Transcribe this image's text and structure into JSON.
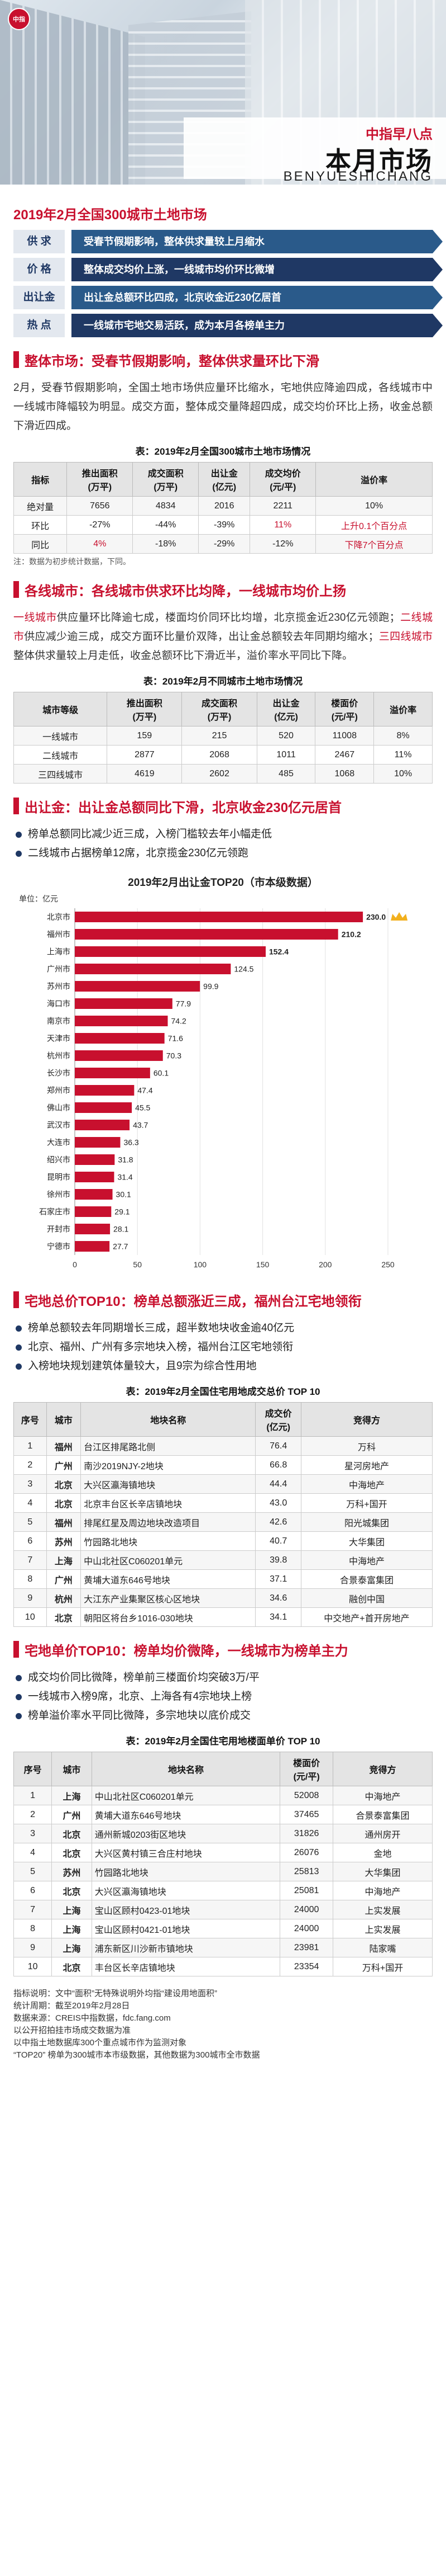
{
  "hero": {
    "logo_text": "中指",
    "subtitle": "中指早八点",
    "title": "本月市场",
    "pinyin": "BENYUESHICHANG"
  },
  "summary": {
    "title": "2019年2月全国300城市土地市场",
    "rows": [
      {
        "label": "供  求",
        "value": "受春节假期影响，整体供求量较上月缩水"
      },
      {
        "label": "价  格",
        "value": "整体成交均价上涨，一线城市均价环比微增"
      },
      {
        "label": "出让金",
        "value": "出让金总额环比四成，北京收金近230亿居首"
      },
      {
        "label": "热  点",
        "value": "一线城市宅地交易活跃，成为本月各榜单主力"
      }
    ]
  },
  "section1": {
    "title": "整体市场：受春节假期影响，整体供求量环比下滑",
    "text": "2月，受春节假期影响，全国土地市场供应量环比缩水，宅地供应降逾四成，各线城市中一线城市降幅较为明显。成交方面，整体成交量降超四成，成交均价环比上扬，收金总额下滑近四成。",
    "table_caption": "表：2019年2月全国300城市土地市场情况",
    "headers": [
      "指标",
      "推出面积\n(万平)",
      "成交面积\n(万平)",
      "出让金\n(亿元)",
      "成交均价\n(元/平)",
      "溢价率"
    ],
    "rows": [
      [
        "绝对量",
        "7656",
        "4834",
        "2016",
        "2211",
        "10%"
      ],
      [
        "环比",
        "-27%",
        "-44%",
        "-39%",
        "11%",
        "上升0.1个百分点"
      ],
      [
        "同比",
        "4%",
        "-18%",
        "-29%",
        "-12%",
        "下降7个百分点"
      ]
    ],
    "note": "注：数据为初步统计数据，下同。"
  },
  "section2": {
    "title": "各线城市：各线城市供求环比均降，一线城市均价上扬",
    "text_a": "一线城市",
    "text_b": "供应量环比降逾七成，楼面均价同环比均增，北京揽金近230亿元领跑；",
    "text_c": "二线城市",
    "text_d": "供应减少逾三成，成交方面环比量价双降，出让金总额较去年同期均缩水；",
    "text_e": "三四线城市",
    "text_f": "整体供求量较上月走低，收金总额环比下滑近半，溢价率水平同比下降。",
    "table_caption": "表：2019年2月不同城市土地市场情况",
    "headers": [
      "城市等级",
      "推出面积\n(万平)",
      "成交面积\n(万平)",
      "出让金\n(亿元)",
      "楼面价\n(元/平)",
      "溢价率"
    ],
    "rows": [
      [
        "一线城市",
        "159",
        "215",
        "520",
        "11008",
        "8%"
      ],
      [
        "二线城市",
        "2877",
        "2068",
        "1011",
        "2467",
        "11%"
      ],
      [
        "三四线城市",
        "4619",
        "2602",
        "485",
        "1068",
        "10%"
      ]
    ]
  },
  "section3": {
    "title": "出让金：出让金总额同比下滑，北京收金230亿元居首",
    "bullets": [
      "榜单总额同比减少近三成，入榜门槛较去年小幅走低",
      "二线城市占据榜单12席，北京揽金230亿元领跑"
    ],
    "chart_title": "2019年2月出让金TOP20（市本级数据）",
    "unit": "单位：亿元"
  },
  "chart_data": {
    "type": "bar",
    "title": "2019年2月出让金TOP20（市本级数据）",
    "ylabel": "单位：亿元",
    "categories": [
      "北京市",
      "福州市",
      "上海市",
      "广州市",
      "苏州市",
      "海口市",
      "南京市",
      "天津市",
      "杭州市",
      "长沙市",
      "郑州市",
      "佛山市",
      "武汉市",
      "大连市",
      "绍兴市",
      "昆明市",
      "徐州市",
      "石家庄市",
      "开封市",
      "宁德市"
    ],
    "values": [
      230.0,
      210.2,
      152.4,
      124.5,
      99.9,
      77.9,
      74.2,
      71.6,
      70.3,
      60.1,
      47.4,
      45.5,
      43.7,
      36.3,
      31.8,
      31.4,
      30.1,
      29.1,
      28.1,
      27.7
    ],
    "xlim": [
      0,
      250
    ],
    "xticks": [
      "0",
      "50",
      "100",
      "150",
      "200",
      "250"
    ],
    "bar_color": "#c8102e"
  },
  "section4": {
    "title": "宅地总价TOP10：榜单总额涨近三成，福州台江宅地领衔",
    "bullets": [
      "榜单总额较去年同期增长三成，超半数地块收金逾40亿元",
      "北京、福州、广州有多宗地块入榜，福州台江区宅地领衔",
      "入榜地块规划建筑体量较大，且9宗为综合性用地"
    ],
    "table_caption": "表：2019年2月全国住宅用地成交总价 TOP 10",
    "headers": [
      "序号",
      "城市",
      "地块名称",
      "成交价\n(亿元)",
      "竞得方"
    ],
    "rows": [
      [
        "1",
        "福州",
        "台江区排尾路北侧",
        "76.4",
        "万科"
      ],
      [
        "2",
        "广州",
        "南沙2019NJY-2地块",
        "66.8",
        "星河房地产"
      ],
      [
        "3",
        "北京",
        "大兴区瀛海镇地块",
        "44.4",
        "中海地产"
      ],
      [
        "4",
        "北京",
        "北京丰台区长辛店镇地块",
        "43.0",
        "万科+国开"
      ],
      [
        "5",
        "福州",
        "排尾红星及周边地块改造项目",
        "42.6",
        "阳光城集团"
      ],
      [
        "6",
        "苏州",
        "竹园路北地块",
        "40.7",
        "大华集团"
      ],
      [
        "7",
        "上海",
        "中山北社区C060201单元",
        "39.8",
        "中海地产"
      ],
      [
        "8",
        "广州",
        "黄埔大道东646号地块",
        "37.1",
        "合景泰富集团"
      ],
      [
        "9",
        "杭州",
        "大江东产业集聚区核心区地块",
        "34.6",
        "融创中国"
      ],
      [
        "10",
        "北京",
        "朝阳区将台乡1016-030地块",
        "34.1",
        "中交地产+首开房地产"
      ]
    ]
  },
  "section5": {
    "title": "宅地单价TOP10：榜单均价微降，一线城市为榜单主力",
    "bullets": [
      "成交均价同比微降，榜单前三楼面价均突破3万/平",
      "一线城市入榜9席，北京、上海各有4宗地块上榜",
      "榜单溢价率水平同比微降，多宗地块以底价成交"
    ],
    "table_caption": "表：2019年2月全国住宅用地楼面单价 TOP 10",
    "headers": [
      "序号",
      "城市",
      "地块名称",
      "楼面价\n(元/平)",
      "竞得方"
    ],
    "rows": [
      [
        "1",
        "上海",
        "中山北社区C060201单元",
        "52008",
        "中海地产"
      ],
      [
        "2",
        "广州",
        "黄埔大道东646号地块",
        "37465",
        "合景泰富集团"
      ],
      [
        "3",
        "北京",
        "通州新城0203街区地块",
        "31826",
        "通州房开"
      ],
      [
        "4",
        "北京",
        "大兴区黄村镇三合庄村地块",
        "26076",
        "金地"
      ],
      [
        "5",
        "苏州",
        "竹园路北地块",
        "25813",
        "大华集团"
      ],
      [
        "6",
        "北京",
        "大兴区瀛海镇地块",
        "25081",
        "中海地产"
      ],
      [
        "7",
        "上海",
        "宝山区顾村0423-01地块",
        "24000",
        "上实发展"
      ],
      [
        "8",
        "上海",
        "宝山区顾村0421-01地块",
        "24000",
        "上实发展"
      ],
      [
        "9",
        "上海",
        "浦东新区川沙新市镇地块",
        "23981",
        "陆家嘴"
      ],
      [
        "10",
        "北京",
        "丰台区长辛店镇地块",
        "23354",
        "万科+国开"
      ]
    ]
  },
  "footer": {
    "lines": [
      "指标说明：文中“面积”无特殊说明外均指“建设用地面积”",
      "统计周期：截至2019年2月28日",
      "数据来源：CREIS中指数据，fdc.fang.com",
      "以公开招拍挂市场成交数据为准",
      "以中指土地数据库300个重点城市作为监测对象",
      "“TOP20” 榜单为300城市本市级数据，其他数据为300城市全市数据"
    ]
  }
}
